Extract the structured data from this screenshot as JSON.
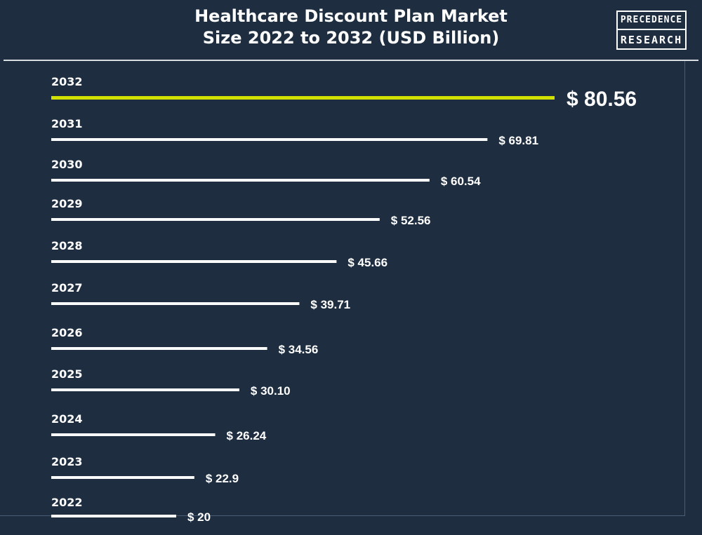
{
  "title_lines": [
    "Healthcare Discount Plan Market",
    "Size 2022 to 2032 (USD Billion)"
  ],
  "logo": {
    "line1": "PRECEDENCE",
    "line2": "RESEARCH"
  },
  "colors": {
    "background": "#1e2e40",
    "bar": "#ffffff",
    "highlight_bar": "#d1e000",
    "text": "#ffffff"
  },
  "chart_data": {
    "type": "bar",
    "orientation": "horizontal",
    "title": "Healthcare Discount Plan Market Size 2022 to 2032 (USD Billion)",
    "categories": [
      "2032",
      "2031",
      "2030",
      "2029",
      "2028",
      "2027",
      "2026",
      "2025",
      "2024",
      "2023",
      "2022"
    ],
    "values": [
      80.56,
      69.81,
      60.54,
      52.56,
      45.66,
      39.71,
      34.56,
      30.1,
      26.24,
      22.9,
      20
    ],
    "value_labels": [
      "$ 80.56",
      "$ 69.81",
      "$ 60.54",
      "$ 52.56",
      "$ 45.66",
      "$ 39.71",
      "$ 34.56",
      "$ 30.10",
      "$ 26.24",
      "$ 22.9",
      "$ 20"
    ],
    "highlight_category": "2032",
    "xlabel": "",
    "ylabel": "",
    "grid": false,
    "legend": "none"
  }
}
